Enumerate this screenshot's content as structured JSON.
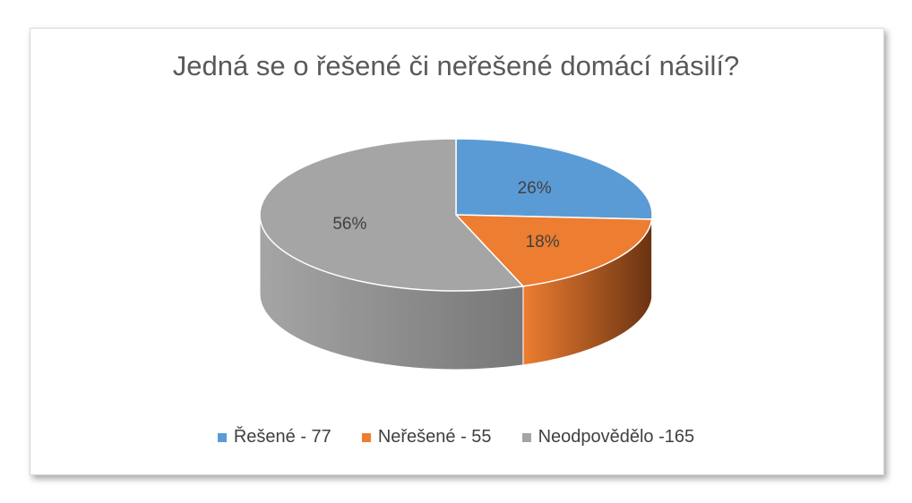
{
  "chart_data": {
    "type": "pie",
    "style": "3d",
    "title": "Jedná se o řešené či neřešené domácí násilí?",
    "slices": [
      {
        "label": "Řešené - 77",
        "value": 77,
        "percent_label": "26%",
        "color": "#5b9bd5",
        "side_color": "#2e5f8f"
      },
      {
        "label": "Neřešené - 55",
        "value": 55,
        "percent_label": "18%",
        "color": "#ed7d31",
        "side_color": "#6a3312"
      },
      {
        "label": "Neodpovědělo -165",
        "value": 165,
        "percent_label": "56%",
        "color": "#a5a5a5",
        "side_color": "#777777"
      }
    ],
    "legend_position": "bottom"
  }
}
